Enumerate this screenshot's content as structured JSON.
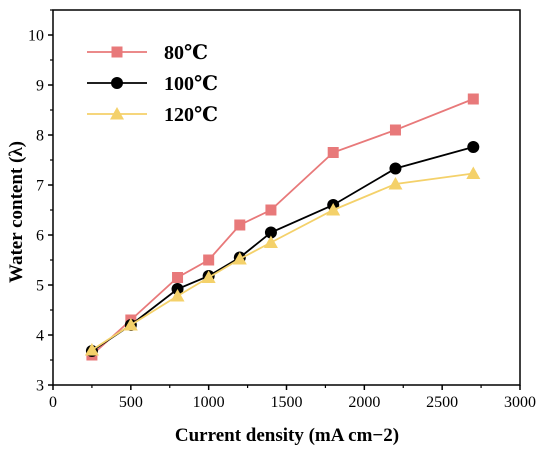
{
  "chart_data": {
    "type": "line",
    "xlabel": "Current density (mA cm−2)",
    "ylabel": "Water content (λ)",
    "xlim": [
      0,
      3000
    ],
    "ylim": [
      3,
      10.5
    ],
    "x_ticks": [
      0,
      500,
      1000,
      1500,
      2000,
      2500,
      3000
    ],
    "y_ticks": [
      3,
      4,
      5,
      6,
      7,
      8,
      9,
      10
    ],
    "x_tick_labels": [
      "0",
      "500",
      "1000",
      "1500",
      "2000",
      "2500",
      "3000"
    ],
    "y_tick_labels": [
      "3",
      "4",
      "5",
      "6",
      "7",
      "8",
      "9",
      "10"
    ],
    "grid": false,
    "legend_position": "top-left",
    "series": [
      {
        "name": "80℃",
        "color": "#E8797A",
        "marker": "square",
        "x": [
          250,
          500,
          800,
          1000,
          1200,
          1400,
          1800,
          2200,
          2700
        ],
        "y": [
          3.6,
          4.3,
          5.15,
          5.5,
          6.2,
          6.5,
          7.65,
          8.1,
          8.72
        ]
      },
      {
        "name": "100℃",
        "color": "#000000",
        "marker": "circle",
        "x": [
          250,
          500,
          800,
          1000,
          1200,
          1400,
          1800,
          2200,
          2700
        ],
        "y": [
          3.68,
          4.2,
          4.92,
          5.18,
          5.55,
          6.05,
          6.6,
          7.33,
          7.76
        ]
      },
      {
        "name": "120℃",
        "color": "#F4D16A",
        "marker": "triangle",
        "x": [
          250,
          500,
          800,
          1000,
          1200,
          1400,
          1800,
          2200,
          2700
        ],
        "y": [
          3.7,
          4.2,
          4.78,
          5.15,
          5.52,
          5.85,
          6.5,
          7.02,
          7.23
        ]
      }
    ]
  }
}
